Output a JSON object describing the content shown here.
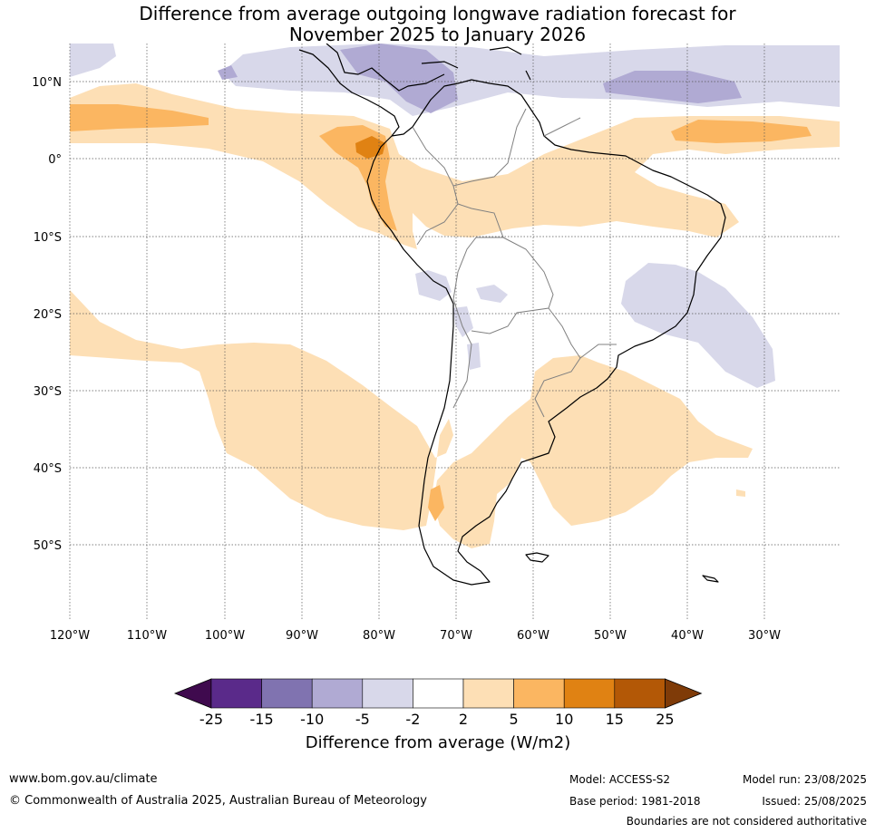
{
  "title_line1": "Difference from average outgoing longwave radiation forecast for",
  "title_line2": "November 2025 to January 2026",
  "lat_labels": [
    "10°N",
    "0°",
    "10°S",
    "20°S",
    "30°S",
    "40°S",
    "50°S"
  ],
  "lon_labels": [
    "120°W",
    "110°W",
    "100°W",
    "90°W",
    "80°W",
    "70°W",
    "60°W",
    "50°W",
    "40°W",
    "30°W"
  ],
  "colorbar": {
    "title": "Difference from average (W/m2)",
    "ticks": [
      "-25",
      "-15",
      "-10",
      "-5",
      "-2",
      "2",
      "5",
      "10",
      "15",
      "25"
    ],
    "colors": [
      "#3f0a4e",
      "#5a2a8a",
      "#8073b0",
      "#b0aad3",
      "#d8d8ea",
      "#ffffff",
      "#fddfb5",
      "#fbb661",
      "#e08213",
      "#b35806",
      "#7f3b08"
    ]
  },
  "footer": {
    "site": "www.bom.gov.au/climate",
    "copyright": "© Commonwealth of Australia 2025, Australian Bureau of Meteorology",
    "model": "Model: ACCESS-S2",
    "base_period": "Base period: 1981-2018",
    "model_run": "Model run: 23/08/2025",
    "issued": "Issued: 25/08/2025",
    "disclaimer": "Boundaries are not considered authoritative"
  }
}
